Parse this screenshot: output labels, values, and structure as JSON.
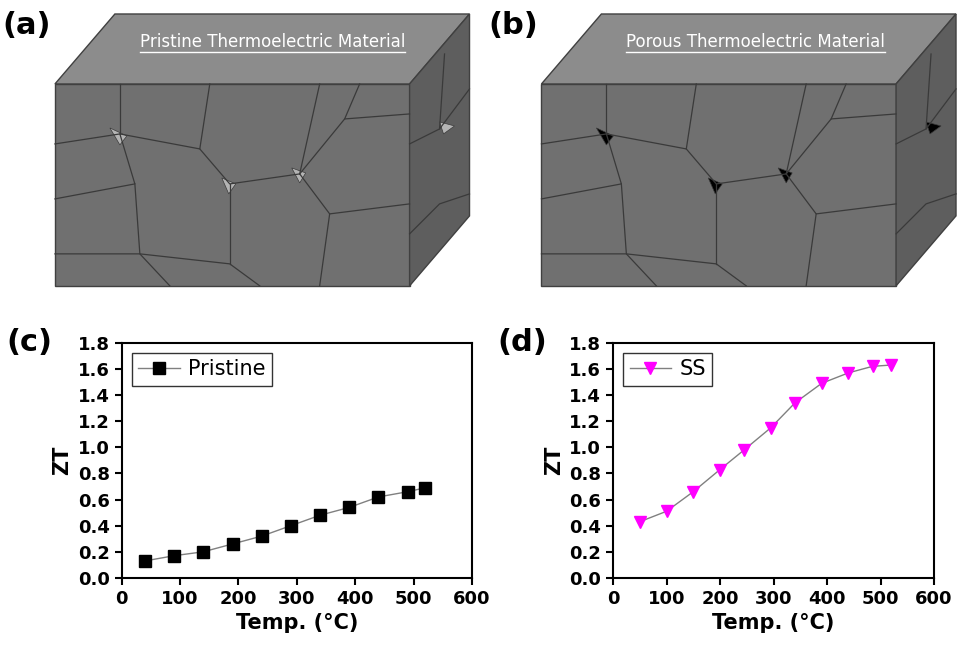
{
  "diagrams": [
    {
      "label": "(a)",
      "title": "Pristine Thermoelectric Material",
      "pore_color": "#b4b4b4"
    },
    {
      "label": "(b)",
      "title": "Porous Thermoelectric Material",
      "pore_color": "#000000"
    }
  ],
  "chart_data": [
    {
      "type": "line",
      "title": "(c)",
      "x_label": "Temp. (°C)",
      "y_label": "ZT",
      "xlim": [
        0,
        600
      ],
      "xticks": [
        0,
        100,
        200,
        300,
        400,
        500,
        600
      ],
      "ylim": [
        0,
        1.8
      ],
      "yticks": [
        {
          "value": 0.0,
          "label": "0.0"
        },
        {
          "value": 0.2,
          "label": "0.2"
        },
        {
          "value": 0.4,
          "label": "0.4"
        },
        {
          "value": 0.6,
          "label": "0.6"
        },
        {
          "value": 0.8,
          "label": "0.8"
        },
        {
          "value": 1.0,
          "label": "1.0"
        },
        {
          "value": 1.2,
          "label": "1.2"
        },
        {
          "value": 1.4,
          "label": "1.4"
        },
        {
          "value": 1.6,
          "label": "1.6"
        },
        {
          "value": 1.8,
          "label": "1.8"
        }
      ],
      "legend": "upper left",
      "series": [
        {
          "name": "Pristine",
          "color": "#000000",
          "marker": "square",
          "line_style": "solid",
          "x": [
            40,
            90,
            140,
            190,
            240,
            290,
            340,
            390,
            440,
            490,
            520
          ],
          "values": [
            0.13,
            0.17,
            0.2,
            0.26,
            0.32,
            0.4,
            0.48,
            0.54,
            0.62,
            0.66,
            0.69
          ]
        }
      ]
    },
    {
      "type": "line",
      "title": "(d)",
      "x_label": "Temp. (°C)",
      "y_label": "ZT",
      "xlim": [
        0,
        600
      ],
      "xticks": [
        0,
        100,
        200,
        300,
        400,
        500,
        600
      ],
      "ylim": [
        0,
        1.8
      ],
      "yticks": [
        {
          "value": 0.0,
          "label": "0.0"
        },
        {
          "value": 0.2,
          "label": "0.2"
        },
        {
          "value": 0.4,
          "label": "0.4"
        },
        {
          "value": 0.6,
          "label": "0.6"
        },
        {
          "value": 0.8,
          "label": "0.8"
        },
        {
          "value": 1.0,
          "label": "1.0"
        },
        {
          "value": 1.2,
          "label": "1.2"
        },
        {
          "value": 1.4,
          "label": "1.4"
        },
        {
          "value": 1.6,
          "label": "1.6"
        },
        {
          "value": 1.8,
          "label": "1.8"
        }
      ],
      "legend": "upper left",
      "series": [
        {
          "name": "SS",
          "color": "#ff00ff",
          "marker": "triangle_down",
          "line_style": "solid",
          "x": [
            50,
            100,
            150,
            200,
            245,
            295,
            340,
            390,
            440,
            485,
            520
          ],
          "values": [
            0.43,
            0.51,
            0.66,
            0.83,
            0.98,
            1.15,
            1.34,
            1.49,
            1.57,
            1.62,
            1.63
          ]
        }
      ]
    }
  ]
}
